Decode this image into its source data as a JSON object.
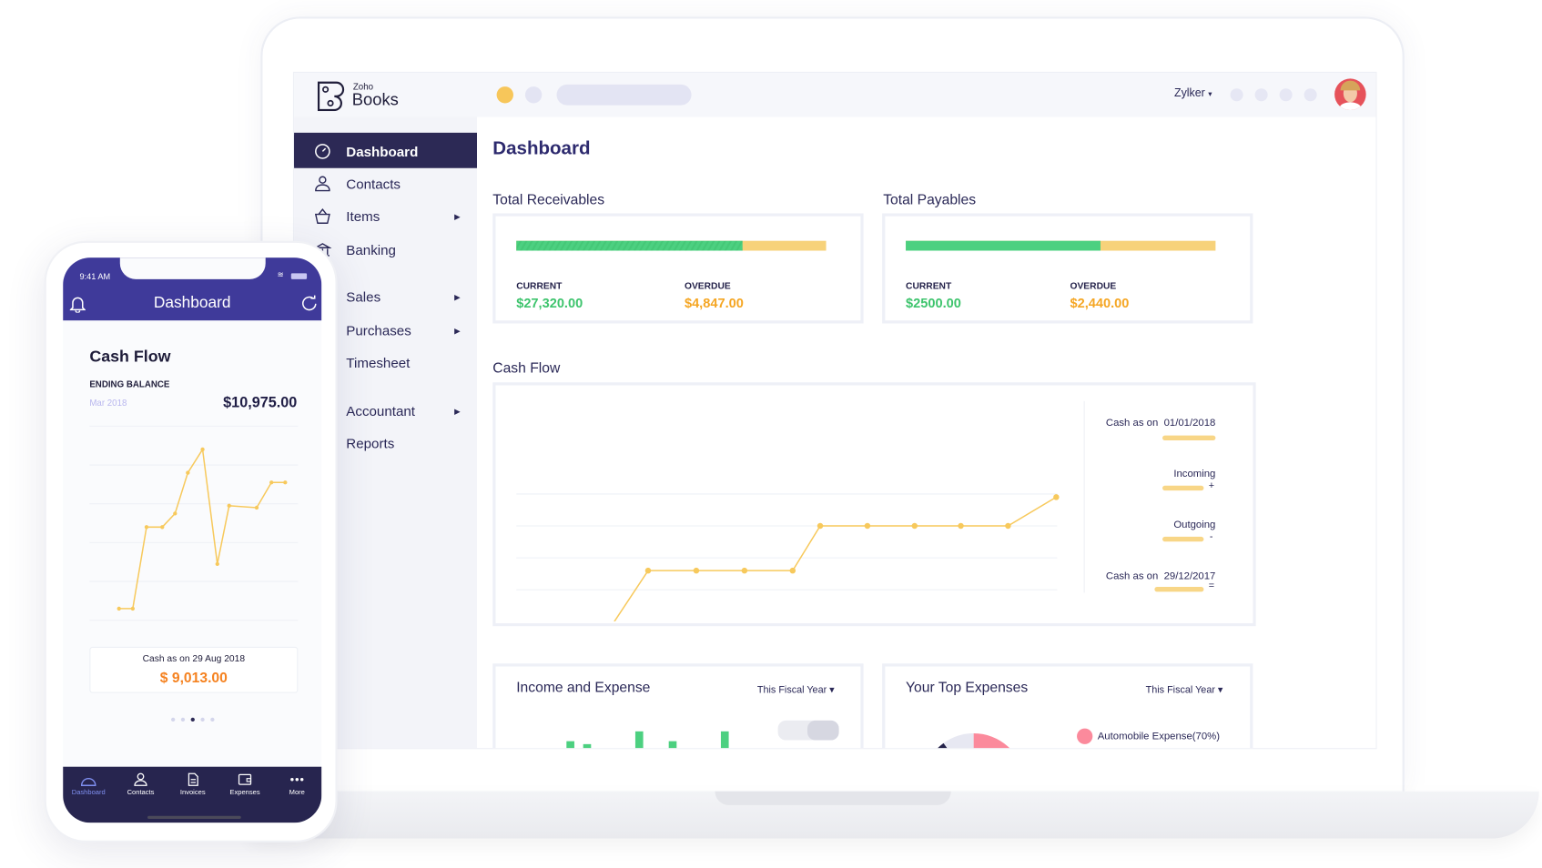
{
  "app": {
    "brand_small": "Zoho",
    "brand": "Books",
    "org": "Zylker",
    "org_caret": "▾"
  },
  "sidebar": {
    "items": [
      {
        "label": "Dashboard",
        "icon": "dashboard-icon",
        "active": true
      },
      {
        "label": "Contacts",
        "icon": "contacts-icon"
      },
      {
        "label": "Items",
        "icon": "basket-icon",
        "arrow": "▶"
      },
      {
        "label": "Banking",
        "icon": "bank-icon"
      },
      {
        "label": "Sales",
        "arrow": "▶"
      },
      {
        "label": "Purchases",
        "arrow": "▶"
      },
      {
        "label": "Timesheet"
      },
      {
        "label": "Accountant",
        "arrow": "▶"
      },
      {
        "label": "Reports"
      }
    ]
  },
  "main": {
    "title": "Dashboard",
    "receivables": {
      "title": "Total Receivables",
      "current_label": "CURRENT",
      "current": "$27,320.00",
      "overdue_label": "OVERDUE",
      "overdue": "$4,847.00",
      "current_fraction": 0.73
    },
    "payables": {
      "title": "Total Payables",
      "current_label": "CURRENT",
      "current": "$2500.00",
      "overdue_label": "OVERDUE",
      "overdue": "$2,440.00",
      "current_fraction": 0.63
    },
    "cashflow": {
      "title": "Cash Flow",
      "legend": {
        "start_label": "Cash as on",
        "start_date": "01/01/2018",
        "incoming": "Incoming",
        "incoming_sign": "+",
        "outgoing": "Outgoing",
        "outgoing_sign": "-",
        "end_label": "Cash as on",
        "end_date": "29/12/2017",
        "end_sign": "="
      }
    },
    "income_expense": {
      "title": "Income and Expense",
      "period": "This Fiscal Year ▾"
    },
    "top_expenses": {
      "title": "Your Top Expenses",
      "period": "This Fiscal Year ▾",
      "legend": "Automobile Expense(70%)"
    }
  },
  "mobile": {
    "time": "9:41 AM",
    "title": "Dashboard",
    "card_title": "Cash Flow",
    "ending_label": "ENDING BALANCE",
    "ending_period": "Mar 2018",
    "ending_value": "$10,975.00",
    "cash_label": "Cash as on 29 Aug 2018",
    "cash_value": "$ 9,013.00",
    "page_index": 2,
    "nav": [
      "Dashboard",
      "Contacts",
      "Invoices",
      "Expenses",
      "More"
    ]
  },
  "colors": {
    "accent": "#3f3a9a",
    "navy": "#2c2955",
    "green": "#4cd080",
    "yellow": "#f7d27a",
    "orange": "#f5a623",
    "pink": "#fb8a9c"
  },
  "chart_data": [
    {
      "type": "line",
      "title": "Cash Flow",
      "series": [
        {
          "values": [
            0,
            0,
            2.6,
            2.6,
            2.6,
            2.6,
            4,
            4,
            4,
            4,
            4,
            4.9
          ]
        }
      ],
      "ylim": [
        0,
        5
      ],
      "grid": true
    },
    {
      "type": "line",
      "title": "Cash Flow (mobile)",
      "series": [
        {
          "values": [
            0.3,
            0.3,
            2.4,
            2.4,
            2.75,
            3.8,
            4.4,
            1.45,
            2.95,
            2.9,
            3.55,
            3.55
          ]
        }
      ],
      "ylim": [
        0,
        5
      ],
      "grid": true
    },
    {
      "type": "bar",
      "title": "Income and Expense",
      "values": [
        6,
        14,
        11,
        6,
        24,
        14,
        1,
        1,
        24
      ]
    },
    {
      "type": "pie",
      "title": "Your Top Expenses",
      "slices": [
        {
          "label": "Automobile Expense",
          "value": 70,
          "color": "#fb8a9c"
        },
        {
          "value": 8,
          "color": "#f7d27a"
        },
        {
          "value": 12,
          "color": "#24224a"
        },
        {
          "value": 10,
          "color": "#e7e8f2"
        }
      ]
    }
  ]
}
